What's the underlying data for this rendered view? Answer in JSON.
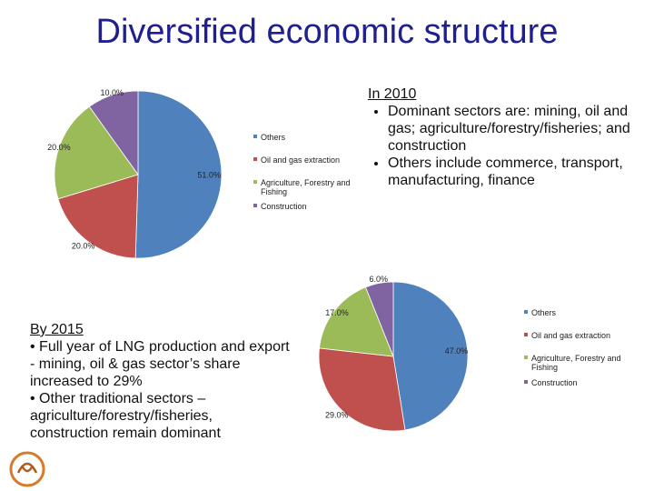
{
  "title": "Diversified economic structure",
  "text_2010": {
    "heading": "In 2010",
    "bullets": [
      "Dominant sectors are: mining, oil and gas; agriculture/forestry/fisheries; and construction",
      "Others include commerce, transport, manufacturing, finance"
    ]
  },
  "text_2015": {
    "heading": "By 2015",
    "lines": [
      "• Full year of LNG production and export - mining, oil & gas sector’s share increased to 29%",
      "• Other traditional sectors – agriculture/forestry/fisheries, construction remain dominant"
    ]
  },
  "chart_data": [
    {
      "type": "pie",
      "categories": [
        "Others",
        "Oil and gas extraction",
        "Agriculture, Forestry and Fishing",
        "Construction"
      ],
      "values": [
        51,
        20,
        20,
        10
      ],
      "value_labels": [
        "51.0%",
        "20.0%",
        "20.0%",
        "10.0%"
      ],
      "colors": [
        "#4f81bd",
        "#c0504d",
        "#9bbb59",
        "#8064a2"
      ],
      "legend": "right"
    },
    {
      "type": "pie",
      "categories": [
        "Others",
        "Oil and gas extraction",
        "Agriculture, Forestry and Fishing",
        "Construction"
      ],
      "values": [
        47,
        29,
        17,
        6
      ],
      "value_labels": [
        "47.0%",
        "29.0%",
        "17.0%",
        "6.0%"
      ],
      "colors": [
        "#4f81bd",
        "#c0504d",
        "#9bbb59",
        "#8064a2"
      ],
      "legend": "right"
    }
  ]
}
